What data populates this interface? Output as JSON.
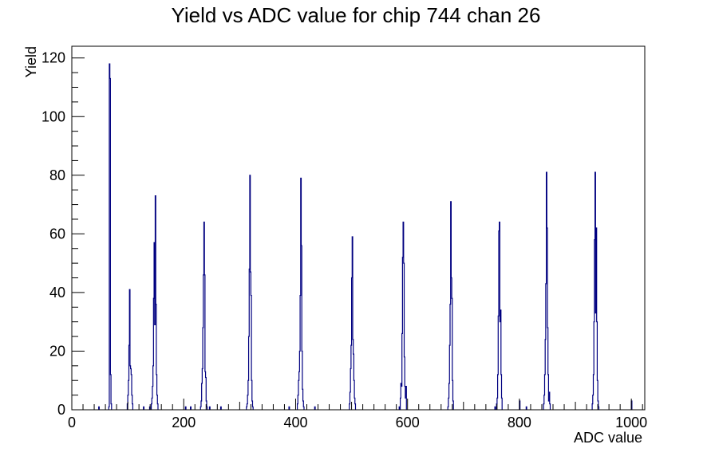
{
  "chart_data": {
    "type": "histogram",
    "title": "Yield vs ADC value for chip 744 chan 26",
    "xlabel": "ADC value",
    "ylabel": "Yield",
    "xlim": [
      0,
      1024
    ],
    "ylim": [
      0,
      124
    ],
    "x_ticks": [
      0,
      200,
      400,
      600,
      800,
      1000
    ],
    "y_ticks": [
      0,
      20,
      40,
      60,
      80,
      100,
      120
    ],
    "legend": "none",
    "grid": false,
    "line_color": "#000080",
    "bins": [
      [
        48,
        1
      ],
      [
        66,
        1
      ],
      [
        67,
        118
      ],
      [
        68,
        113
      ],
      [
        69,
        12
      ],
      [
        70,
        2
      ],
      [
        99,
        2
      ],
      [
        100,
        5
      ],
      [
        101,
        10
      ],
      [
        102,
        22
      ],
      [
        103,
        41
      ],
      [
        104,
        15
      ],
      [
        105,
        14
      ],
      [
        106,
        12
      ],
      [
        107,
        5
      ],
      [
        108,
        2
      ],
      [
        128,
        1
      ],
      [
        139,
        1
      ],
      [
        142,
        2
      ],
      [
        143,
        4
      ],
      [
        144,
        8
      ],
      [
        145,
        15
      ],
      [
        146,
        38
      ],
      [
        147,
        57
      ],
      [
        148,
        29
      ],
      [
        149,
        73
      ],
      [
        150,
        36
      ],
      [
        151,
        12
      ],
      [
        152,
        5
      ],
      [
        153,
        2
      ],
      [
        203,
        1
      ],
      [
        212,
        1
      ],
      [
        230,
        1
      ],
      [
        231,
        3
      ],
      [
        232,
        9
      ],
      [
        233,
        14
      ],
      [
        234,
        28
      ],
      [
        235,
        46
      ],
      [
        236,
        64
      ],
      [
        237,
        46
      ],
      [
        238,
        13
      ],
      [
        239,
        11
      ],
      [
        240,
        3
      ],
      [
        241,
        1
      ],
      [
        246,
        1
      ],
      [
        266,
        1
      ],
      [
        312,
        1
      ],
      [
        313,
        2
      ],
      [
        314,
        5
      ],
      [
        315,
        10
      ],
      [
        316,
        25
      ],
      [
        317,
        48
      ],
      [
        318,
        80
      ],
      [
        319,
        47
      ],
      [
        320,
        39
      ],
      [
        321,
        10
      ],
      [
        322,
        3
      ],
      [
        323,
        1
      ],
      [
        388,
        1
      ],
      [
        403,
        2
      ],
      [
        404,
        5
      ],
      [
        405,
        10
      ],
      [
        406,
        13
      ],
      [
        407,
        20
      ],
      [
        408,
        39
      ],
      [
        409,
        79
      ],
      [
        410,
        56
      ],
      [
        411,
        20
      ],
      [
        412,
        7
      ],
      [
        413,
        3
      ],
      [
        414,
        1
      ],
      [
        434,
        1
      ],
      [
        496,
        2
      ],
      [
        497,
        6
      ],
      [
        498,
        14
      ],
      [
        499,
        22
      ],
      [
        500,
        45
      ],
      [
        501,
        59
      ],
      [
        502,
        24
      ],
      [
        503,
        19
      ],
      [
        504,
        10
      ],
      [
        505,
        4
      ],
      [
        506,
        2
      ],
      [
        585,
        1
      ],
      [
        587,
        4
      ],
      [
        588,
        9
      ],
      [
        589,
        8
      ],
      [
        590,
        26
      ],
      [
        591,
        52
      ],
      [
        592,
        64
      ],
      [
        593,
        50
      ],
      [
        594,
        18
      ],
      [
        595,
        8
      ],
      [
        596,
        4
      ],
      [
        597,
        8
      ],
      [
        672,
        1
      ],
      [
        673,
        4
      ],
      [
        674,
        9
      ],
      [
        675,
        22
      ],
      [
        676,
        36
      ],
      [
        677,
        71
      ],
      [
        678,
        45
      ],
      [
        679,
        38
      ],
      [
        680,
        10
      ],
      [
        681,
        3
      ],
      [
        756,
        1
      ],
      [
        759,
        2
      ],
      [
        760,
        4
      ],
      [
        761,
        12
      ],
      [
        762,
        32
      ],
      [
        763,
        61
      ],
      [
        764,
        64
      ],
      [
        765,
        30
      ],
      [
        766,
        34
      ],
      [
        767,
        12
      ],
      [
        768,
        4
      ],
      [
        800,
        3
      ],
      [
        812,
        1
      ],
      [
        843,
        2
      ],
      [
        844,
        5
      ],
      [
        845,
        12
      ],
      [
        846,
        24
      ],
      [
        847,
        43
      ],
      [
        848,
        81
      ],
      [
        849,
        62
      ],
      [
        850,
        28
      ],
      [
        851,
        12
      ],
      [
        852,
        3
      ],
      [
        853,
        6
      ],
      [
        854,
        2
      ],
      [
        930,
        2
      ],
      [
        931,
        5
      ],
      [
        932,
        12
      ],
      [
        933,
        30
      ],
      [
        934,
        58
      ],
      [
        935,
        81
      ],
      [
        936,
        33
      ],
      [
        937,
        62
      ],
      [
        938,
        30
      ],
      [
        939,
        10
      ],
      [
        940,
        3
      ],
      [
        941,
        1
      ],
      [
        1000,
        3
      ]
    ]
  }
}
